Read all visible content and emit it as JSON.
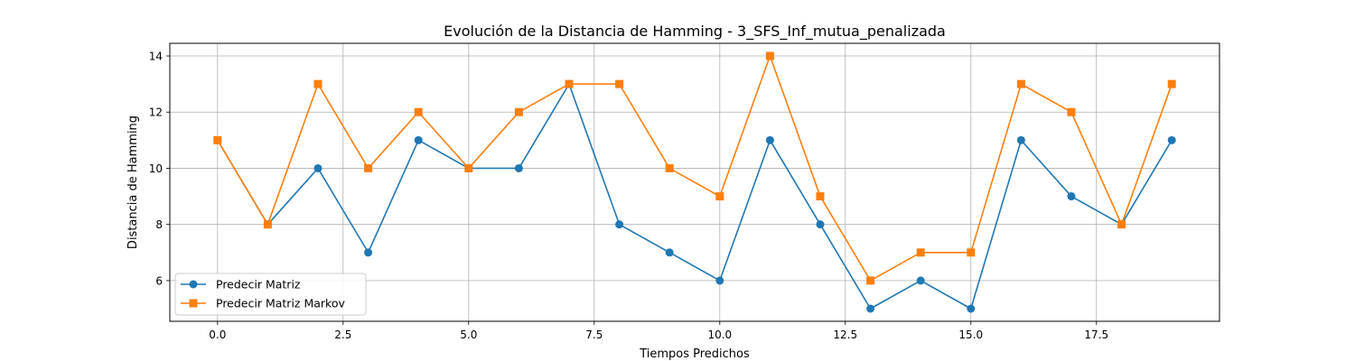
{
  "chart_data": {
    "type": "line",
    "title": "Evolución de la Distancia de Hamming - 3_SFS_Inf_mutua_penalizada",
    "xlabel": "Tiempos Predichos",
    "ylabel": "Distancia de Hamming",
    "xlim": [
      -0.95,
      19.95
    ],
    "ylim": [
      4.55,
      14.45
    ],
    "xticks": [
      0.0,
      2.5,
      5.0,
      7.5,
      10.0,
      12.5,
      15.0,
      17.5
    ],
    "xtick_labels": [
      "0.0",
      "2.5",
      "5.0",
      "7.5",
      "10.0",
      "12.5",
      "15.0",
      "17.5"
    ],
    "yticks": [
      6,
      8,
      10,
      12,
      14
    ],
    "ytick_labels": [
      "6",
      "8",
      "10",
      "12",
      "14"
    ],
    "grid": true,
    "legend_position": "bottom-left",
    "x": [
      0,
      1,
      2,
      3,
      4,
      5,
      6,
      7,
      8,
      9,
      10,
      11,
      12,
      13,
      14,
      15,
      16,
      17,
      18,
      19
    ],
    "series": [
      {
        "name": "Predecir Matriz",
        "color": "#1f77b4",
        "marker": "circle",
        "values": [
          11,
          8,
          10,
          7,
          11,
          10,
          10,
          13,
          8,
          7,
          6,
          11,
          8,
          5,
          6,
          5,
          11,
          9,
          8,
          11
        ]
      },
      {
        "name": "Predecir Matriz Markov",
        "color": "#ff7f0e",
        "marker": "square",
        "values": [
          11,
          8,
          13,
          10,
          12,
          10,
          12,
          13,
          13,
          10,
          9,
          14,
          9,
          6,
          7,
          7,
          13,
          12,
          8,
          13
        ]
      }
    ]
  }
}
